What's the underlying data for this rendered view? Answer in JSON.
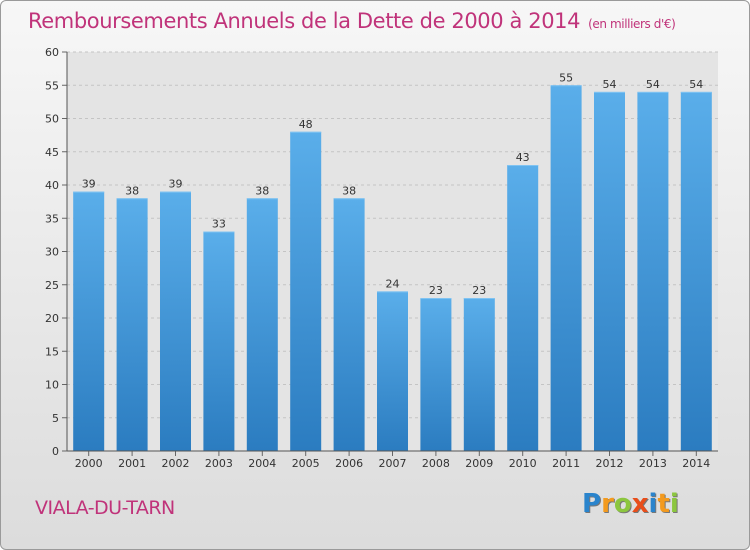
{
  "chart_data": {
    "type": "bar",
    "title": "Remboursements Annuels de la Dette de 2000 à 2014",
    "subtitle": "(en milliers d'€)",
    "categories": [
      "2000",
      "2001",
      "2002",
      "2003",
      "2004",
      "2005",
      "2006",
      "2007",
      "2008",
      "2009",
      "2010",
      "2011",
      "2012",
      "2013",
      "2014"
    ],
    "values": [
      39,
      38,
      39,
      33,
      38,
      48,
      38,
      24,
      23,
      23,
      43,
      55,
      54,
      54,
      54
    ],
    "ylim": [
      0,
      60
    ],
    "yticks": [
      0,
      5,
      10,
      15,
      20,
      25,
      30,
      35,
      40,
      45,
      50,
      55,
      60
    ],
    "grid": true,
    "bar_color": "#4d9ede"
  },
  "place_name": "VIALA-DU-TARN",
  "logo": {
    "letters": [
      "P",
      "r",
      "o",
      "x",
      "i",
      "t",
      "i"
    ],
    "colors": [
      "#2a84cc",
      "#f39a1e",
      "#8cc63f",
      "#e84e1b",
      "#2a84cc",
      "#f39a1e",
      "#8cc63f"
    ]
  }
}
